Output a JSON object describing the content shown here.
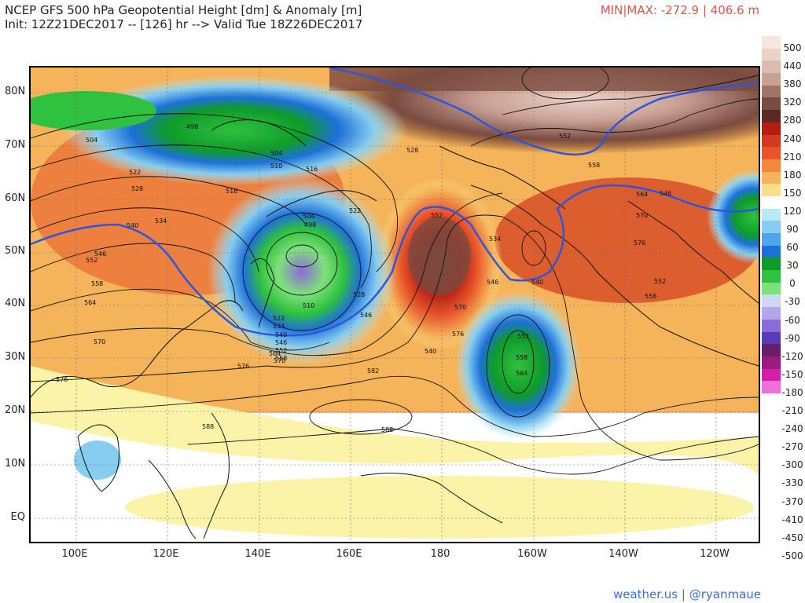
{
  "header": {
    "title_line1": "NCEP GFS 500 hPa Geopotential Height [dm] & Anomaly [m]",
    "title_line2": "Init: 12Z21DEC2017 -- [126] hr --> Valid Tue 18Z26DEC2017",
    "minmax": "MIN|MAX: -272.9 | 406.6 m"
  },
  "footer": {
    "credit": "weather.us | @ryanmaue"
  },
  "axes": {
    "lat_labels": [
      "80N",
      "70N",
      "60N",
      "50N",
      "40N",
      "30N",
      "20N",
      "10N",
      "EQ"
    ],
    "lon_labels": [
      "100E",
      "120E",
      "140E",
      "160E",
      "180",
      "160W",
      "140W",
      "120W"
    ]
  },
  "colorbar": {
    "labels": [
      "500",
      "440",
      "380",
      "320",
      "280",
      "240",
      "210",
      "180",
      "150",
      "120",
      "90",
      "60",
      "30",
      "0",
      "-30",
      "-60",
      "-90",
      "-120",
      "-150",
      "-180",
      "-210",
      "-240",
      "-270",
      "-300",
      "-330",
      "-370",
      "-410",
      "-450",
      "-500"
    ],
    "colors": [
      "#f7e6df",
      "#ead2c8",
      "#dcbcb0",
      "#c9a194",
      "#a27468",
      "#7a4b40",
      "#5a2a22",
      "#b21e12",
      "#d23a1d",
      "#e8552a",
      "#f08a3a",
      "#f5b35a",
      "#f9df87",
      "#ffffff",
      "#b9e9f4",
      "#86cdef",
      "#4fa5e8",
      "#1d70d9",
      "#0e9b2a",
      "#2fc23e",
      "#7fe07b",
      "#cfd8f2",
      "#b4a6ec",
      "#8c6bd8",
      "#5a3cb8",
      "#6b1d6c",
      "#9b1a7f",
      "#d21eab",
      "#ee6fdc"
    ]
  },
  "contour_labels": [
    "498",
    "504",
    "504",
    "510",
    "516",
    "516",
    "522",
    "528",
    "528",
    "534",
    "540",
    "546",
    "552",
    "558",
    "564",
    "570",
    "576",
    "576",
    "582",
    "588",
    "588",
    "510",
    "504",
    "498",
    "522",
    "534",
    "540",
    "546",
    "552",
    "558",
    "564",
    "570",
    "528",
    "546",
    "552",
    "558",
    "564",
    "570",
    "576",
    "540",
    "546",
    "552",
    "558",
    "564",
    "570",
    "576",
    "534",
    "540",
    "546",
    "552",
    "552",
    "558",
    "522"
  ]
}
